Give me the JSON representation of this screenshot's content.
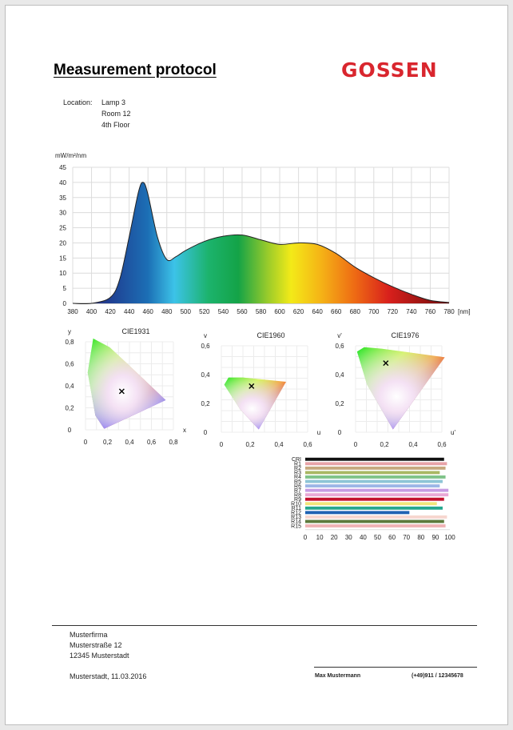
{
  "header": {
    "title": "Measurement protocol",
    "logo": "GOSSEN"
  },
  "location": {
    "label": "Location:",
    "lines": [
      "Lamp 3",
      "Room 12",
      "4th Floor"
    ]
  },
  "colors": {
    "logo": "#d9262e",
    "curve": "#222222"
  },
  "chart_data": [
    {
      "type": "area",
      "ylabel": "mW/m²/nm",
      "xunit": "[nm]",
      "x": [
        380,
        400,
        420,
        430,
        440,
        450,
        455,
        460,
        470,
        480,
        490,
        500,
        520,
        540,
        560,
        580,
        600,
        620,
        640,
        660,
        680,
        700,
        720,
        740,
        760,
        780
      ],
      "values": [
        0,
        0,
        2,
        8,
        22,
        37,
        40,
        36,
        22,
        14.5,
        15.5,
        17.5,
        20.5,
        22.2,
        22.6,
        21,
        19.5,
        20,
        19.5,
        16.5,
        12,
        8.5,
        5.5,
        3,
        1,
        0.3
      ],
      "xlim": [
        380,
        780
      ],
      "ylim": [
        0,
        45
      ],
      "xticks": [
        "380",
        "400",
        "420",
        "440",
        "460",
        "480",
        "500",
        "520",
        "540",
        "560",
        "580",
        "600",
        "620",
        "640",
        "660",
        "680",
        "700",
        "720",
        "740",
        "760",
        "780"
      ],
      "yticks": [
        "0",
        "5",
        "10",
        "15",
        "20",
        "25",
        "30",
        "35",
        "40",
        "45"
      ],
      "grid": true
    },
    {
      "type": "scatter",
      "title": "CIE1931",
      "xlabel": "x",
      "ylabel": "y",
      "xticks": [
        "0",
        "0,2",
        "0,4",
        "0,6",
        "0,8"
      ],
      "yticks": [
        "0",
        "0,2",
        "0,4",
        "0,6",
        "0,8"
      ],
      "xlim": [
        0,
        0.8
      ],
      "ylim": [
        0,
        0.8
      ],
      "point": {
        "x": 0.33,
        "y": 0.35
      },
      "gamut": [
        [
          0.17,
          0.01
        ],
        [
          0.09,
          0.13
        ],
        [
          0.02,
          0.52
        ],
        [
          0.07,
          0.83
        ],
        [
          0.22,
          0.75
        ],
        [
          0.36,
          0.62
        ],
        [
          0.55,
          0.44
        ],
        [
          0.73,
          0.27
        ],
        [
          0.17,
          0.01
        ]
      ]
    },
    {
      "type": "scatter",
      "title": "CIE1960",
      "xlabel": "u",
      "ylabel": "v",
      "xticks": [
        "0",
        "0,2",
        "0,4",
        "0,6"
      ],
      "yticks": [
        "0",
        "0,2",
        "0,4",
        "0,6"
      ],
      "xlim": [
        0,
        0.6
      ],
      "ylim": [
        0,
        0.6
      ],
      "point": {
        "x": 0.21,
        "y": 0.32
      },
      "gamut": [
        [
          0.26,
          0.02
        ],
        [
          0.13,
          0.16
        ],
        [
          0.02,
          0.33
        ],
        [
          0.05,
          0.38
        ],
        [
          0.15,
          0.38
        ],
        [
          0.45,
          0.35
        ],
        [
          0.26,
          0.02
        ]
      ]
    },
    {
      "type": "scatter",
      "title": "CIE1976",
      "xlabel": "u'",
      "ylabel": "v'",
      "xticks": [
        "0",
        "0,2",
        "0,4",
        "0,6"
      ],
      "yticks": [
        "0",
        "0,2",
        "0,4",
        "0,6"
      ],
      "xlim": [
        0,
        0.6
      ],
      "ylim": [
        0,
        0.6
      ],
      "point": {
        "x": 0.21,
        "y": 0.48
      },
      "gamut": [
        [
          0.26,
          0.02
        ],
        [
          0.08,
          0.33
        ],
        [
          0.01,
          0.56
        ],
        [
          0.06,
          0.59
        ],
        [
          0.18,
          0.58
        ],
        [
          0.62,
          0.52
        ],
        [
          0.26,
          0.02
        ]
      ]
    },
    {
      "type": "bar",
      "categories": [
        "CRI",
        "R1",
        "R2",
        "R3",
        "R4",
        "R5",
        "R6",
        "R7",
        "R8",
        "R9",
        "R10",
        "R11",
        "R12",
        "R13",
        "R14",
        "R15"
      ],
      "values": [
        96,
        98,
        97,
        93,
        97,
        95,
        93,
        99,
        99,
        96,
        91,
        95,
        72,
        98,
        96,
        97
      ],
      "colors": [
        "#111111",
        "#e8a3a8",
        "#c7a87e",
        "#a9b864",
        "#7fc389",
        "#8ec5d6",
        "#9db6e6",
        "#c79be3",
        "#e9a8d6",
        "#c3102e",
        "#f1e57a",
        "#26a78e",
        "#1f62b3",
        "#f6d6cf",
        "#5d7a3c",
        "#f0b3b5"
      ],
      "xticks": [
        "0",
        "10",
        "20",
        "30",
        "40",
        "50",
        "60",
        "70",
        "80",
        "90",
        "100"
      ],
      "xlim": [
        0,
        100
      ]
    }
  ],
  "footer": {
    "company": [
      "Musterfirma",
      "Musterstraße 12",
      "12345 Musterstadt"
    ],
    "place_date": "Musterstadt,  11.03.2016",
    "name": "Max Mustermann",
    "phone": "(+49)911 / 12345678"
  }
}
